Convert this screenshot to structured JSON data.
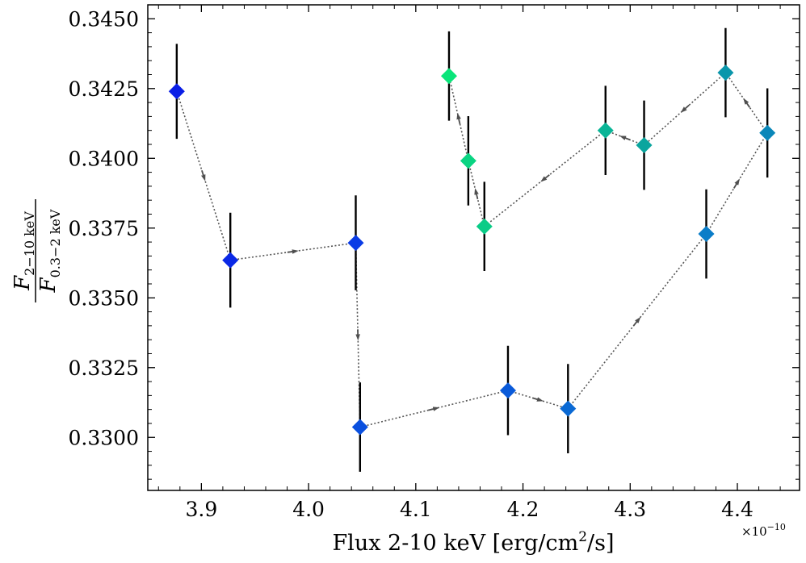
{
  "chart_data": {
    "type": "scatter",
    "xlabel": "Flux 2-10 keV [erg/cm",
    "xlabel_sup": "2",
    "xlabel_tail": "/s]",
    "x_offset_label": "×10",
    "x_offset_exp": "−10",
    "ylabel_num": "F",
    "ylabel_num_sub": "2−10 keV",
    "ylabel_den": "F",
    "ylabel_den_sub": "0.3−2 keV",
    "xlim": [
      3.85,
      4.458
    ],
    "ylim": [
      0.3281,
      0.3455
    ],
    "xticks": [
      3.9,
      4.0,
      4.1,
      4.2,
      4.3,
      4.4
    ],
    "xtick_labels": [
      "3.9",
      "4.0",
      "4.1",
      "4.2",
      "4.3",
      "4.4"
    ],
    "yticks": [
      0.33,
      0.3325,
      0.335,
      0.3375,
      0.34,
      0.3425,
      0.345
    ],
    "ytick_labels": [
      "0.3300",
      "0.3325",
      "0.3350",
      "0.3375",
      "0.3400",
      "0.3425",
      "0.3450"
    ],
    "points": [
      {
        "x": 3.877,
        "y": 0.3424,
        "err": 0.0017,
        "color": "#0a1ee6"
      },
      {
        "x": 3.927,
        "y": 0.33635,
        "err": 0.0017,
        "color": "#0a28e6"
      },
      {
        "x": 4.044,
        "y": 0.33697,
        "err": 0.0017,
        "color": "#0a3ce6"
      },
      {
        "x": 4.048,
        "y": 0.33037,
        "err": 0.0016,
        "color": "#0a50df"
      },
      {
        "x": 4.186,
        "y": 0.33168,
        "err": 0.0016,
        "color": "#0a5ad9"
      },
      {
        "x": 4.242,
        "y": 0.33103,
        "err": 0.0016,
        "color": "#0a69d4"
      },
      {
        "x": 4.371,
        "y": 0.33729,
        "err": 0.0016,
        "color": "#0a7dc8"
      },
      {
        "x": 4.428,
        "y": 0.34091,
        "err": 0.0016,
        "color": "#0a87b9"
      },
      {
        "x": 4.389,
        "y": 0.34307,
        "err": 0.0016,
        "color": "#0a96ab"
      },
      {
        "x": 4.313,
        "y": 0.34047,
        "err": 0.0016,
        "color": "#0aa59e"
      },
      {
        "x": 4.277,
        "y": 0.341,
        "err": 0.0016,
        "color": "#0ab597"
      },
      {
        "x": 4.164,
        "y": 0.33756,
        "err": 0.0016,
        "color": "#0acc87"
      },
      {
        "x": 4.149,
        "y": 0.33991,
        "err": 0.0016,
        "color": "#0ad482"
      },
      {
        "x": 4.131,
        "y": 0.34295,
        "err": 0.0016,
        "color": "#0ae57a"
      }
    ]
  }
}
